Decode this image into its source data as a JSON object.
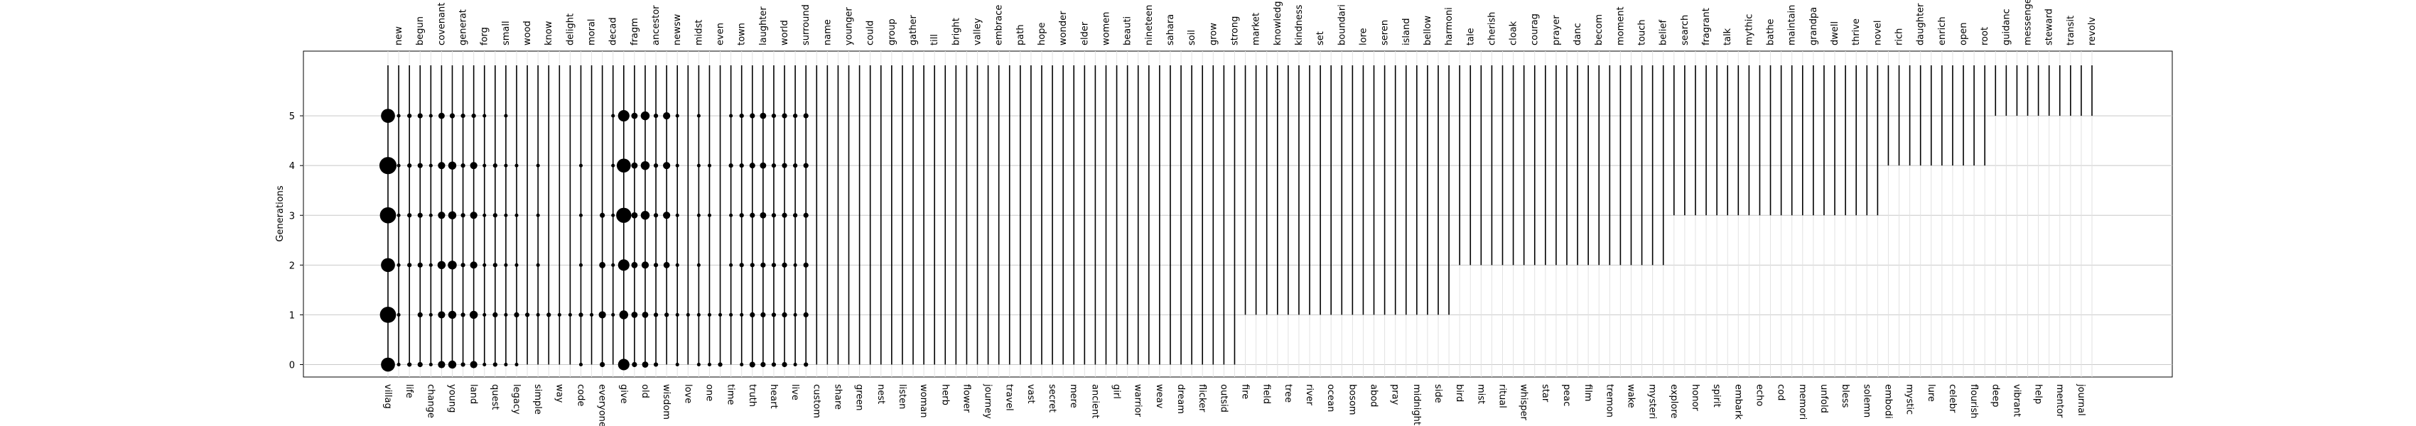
{
  "chart_data": {
    "type": "timeline",
    "y_label": "Generations",
    "ylim": [
      -0.25,
      6.3
    ],
    "yticks": [
      0,
      1,
      2,
      3,
      4,
      5
    ],
    "grid": true,
    "color": "#000000",
    "words": [
      "villag",
      "new",
      "life",
      "begun",
      "change",
      "covenant",
      "young",
      "generat",
      "land",
      "forg",
      "quest",
      "small",
      "legacy",
      "wood",
      "simple",
      "know",
      "way",
      "delight",
      "code",
      "moral",
      "everyone",
      "decad",
      "give",
      "fragm",
      "old",
      "ancestor",
      "wisdom",
      "newsw",
      "love",
      "midst",
      "one",
      "even",
      "time",
      "town",
      "truth",
      "laughter",
      "heart",
      "world",
      "live",
      "surround",
      "custom",
      "name",
      "share",
      "younger",
      "green",
      "could",
      "nest",
      "group",
      "listen",
      "gather",
      "woman",
      "till",
      "herb",
      "bright",
      "flower",
      "valley",
      "journey",
      "embrace",
      "travel",
      "path",
      "vast",
      "hope",
      "secret",
      "wonder",
      "mere",
      "elder",
      "ancient",
      "women",
      "girl",
      "beauti",
      "warrior",
      "nineteen",
      "weav",
      "sahara",
      "dream",
      "soil",
      "flicker",
      "grow",
      "outsid",
      "strong",
      "fire",
      "market",
      "field",
      "knowledg",
      "tree",
      "kindness",
      "river",
      "set",
      "ocean",
      "boundari",
      "bosom",
      "lore",
      "abod",
      "seren",
      "pray",
      "island",
      "midnight",
      "bellow",
      "side",
      "harmoni",
      "bird",
      "tale",
      "mist",
      "cherish",
      "ritual",
      "cloak",
      "whisper",
      "courag",
      "star",
      "prayer",
      "peac",
      "danc",
      "film",
      "becom",
      "tremon",
      "moment",
      "wake",
      "touch",
      "mysteri",
      "belief",
      "explore",
      "search",
      "honor",
      "fragrant",
      "spirit",
      "talk",
      "embark",
      "mythic",
      "echo",
      "bathe",
      "cod",
      "maintain",
      "memori",
      "grandpa",
      "unfold",
      "dwell",
      "bless",
      "thrive",
      "solemn",
      "novel",
      "embodi",
      "rich",
      "mystic",
      "daughter",
      "lure",
      "enrich",
      "celebr",
      "open",
      "flourish",
      "root",
      "deep",
      "guidanc",
      "vibrant",
      "messenger",
      "help",
      "steward",
      "mentor",
      "transit",
      "journal",
      "revolv"
    ],
    "first": [
      0,
      0,
      0,
      0,
      0,
      0,
      0,
      0,
      0,
      0,
      0,
      0,
      0,
      0,
      0,
      0,
      0,
      0,
      0,
      0,
      0,
      0,
      0,
      0,
      0,
      0,
      0,
      0,
      0,
      0,
      0,
      0,
      0,
      0,
      0,
      0,
      0,
      0,
      0,
      0,
      0,
      0,
      0,
      0,
      0,
      0,
      0,
      0,
      0,
      0,
      0,
      0,
      0,
      0,
      0,
      0,
      0,
      0,
      0,
      0,
      0,
      0,
      0,
      0,
      0,
      0,
      0,
      0,
      0,
      0,
      0,
      0,
      0,
      0,
      0,
      0,
      0,
      0,
      0,
      0,
      1,
      1,
      1,
      1,
      1,
      1,
      1,
      1,
      1,
      1,
      1,
      1,
      1,
      1,
      1,
      1,
      1,
      1,
      1,
      1,
      2,
      2,
      2,
      2,
      2,
      2,
      2,
      2,
      2,
      2,
      2,
      2,
      2,
      2,
      2,
      2,
      2,
      2,
      2,
      2,
      3,
      3,
      3,
      3,
      3,
      3,
      3,
      3,
      3,
      3,
      3,
      3,
      3,
      3,
      3,
      3,
      3,
      3,
      3,
      3,
      4,
      4,
      4,
      4,
      4,
      4,
      4,
      4,
      4,
      4,
      5,
      5,
      5,
      5,
      5,
      5,
      5,
      5,
      5,
      5
    ],
    "weights": [
      [
        30,
        40,
        30,
        40,
        45,
        30
      ],
      [
        2,
        2,
        2,
        2,
        2,
        2
      ],
      [
        3,
        null,
        3,
        3,
        3,
        3
      ],
      [
        4,
        4,
        4,
        4,
        4,
        4
      ],
      [
        2,
        2,
        2,
        2,
        2,
        2
      ],
      [
        8,
        8,
        10,
        8,
        8,
        6
      ],
      [
        10,
        10,
        12,
        10,
        10,
        4
      ],
      [
        3,
        3,
        3,
        3,
        3,
        3
      ],
      [
        8,
        10,
        8,
        8,
        8,
        3
      ],
      [
        2,
        2,
        2,
        2,
        2,
        2
      ],
      [
        3,
        4,
        3,
        3,
        3,
        null
      ],
      [
        2,
        2,
        2,
        2,
        2,
        2
      ],
      [
        2,
        4,
        2,
        2,
        2,
        null
      ],
      [
        null,
        3,
        null,
        null,
        null,
        null
      ],
      [
        null,
        2,
        2,
        2,
        2,
        null
      ],
      [
        null,
        3,
        null,
        null,
        null,
        null
      ],
      [
        null,
        2,
        null,
        null,
        null,
        null
      ],
      [
        null,
        2,
        null,
        null,
        null,
        null
      ],
      [
        2,
        3,
        2,
        2,
        2,
        null
      ],
      [
        null,
        2,
        null,
        null,
        null,
        null
      ],
      [
        4,
        8,
        6,
        4,
        null,
        null
      ],
      [
        null,
        2,
        2,
        2,
        2,
        2
      ],
      [
        20,
        12,
        20,
        35,
        30,
        20
      ],
      [
        4,
        6,
        6,
        6,
        6,
        6
      ],
      [
        6,
        6,
        8,
        12,
        12,
        12
      ],
      [
        3,
        3,
        3,
        3,
        3,
        3
      ],
      [
        null,
        3,
        6,
        8,
        8,
        8
      ],
      [
        2,
        2,
        2,
        2,
        2,
        2
      ],
      [
        null,
        2,
        null,
        null,
        null,
        null
      ],
      [
        2,
        2,
        2,
        2,
        2,
        2
      ],
      [
        2,
        2,
        null,
        2,
        2,
        null
      ],
      [
        3,
        2,
        null,
        null,
        null,
        null
      ],
      [
        null,
        2,
        2,
        2,
        3,
        2
      ],
      [
        2,
        2,
        3,
        3,
        3,
        3
      ],
      [
        5,
        4,
        3,
        4,
        5,
        4
      ],
      [
        4,
        4,
        4,
        6,
        6,
        6
      ],
      [
        3,
        3,
        3,
        3,
        3,
        3
      ],
      [
        4,
        4,
        4,
        4,
        4,
        4
      ],
      [
        2,
        2,
        2,
        3,
        3,
        3
      ],
      [
        3,
        4,
        4,
        4,
        4,
        4
      ],
      null,
      null,
      null,
      null,
      null,
      null,
      null,
      null,
      null,
      null,
      null,
      null,
      null,
      null,
      null,
      null,
      null,
      null,
      null,
      null,
      null,
      null,
      null,
      null,
      null,
      null,
      null,
      null,
      null,
      null,
      null,
      null,
      null,
      null,
      null,
      null,
      null,
      null,
      null,
      null,
      null,
      null,
      null,
      null,
      null,
      null,
      null,
      null,
      null,
      null,
      null,
      null,
      null,
      null,
      null,
      null,
      null,
      null,
      null,
      null,
      null,
      null,
      null,
      null,
      null,
      null,
      null,
      null,
      null,
      null,
      null,
      null,
      null,
      null,
      null,
      null,
      null,
      null,
      null,
      null,
      null,
      null,
      null,
      null,
      null,
      null,
      null,
      null,
      null,
      null,
      null,
      null,
      null,
      null,
      null,
      null,
      null,
      null,
      null,
      null,
      null,
      null,
      null,
      null,
      null,
      null,
      null,
      null,
      null,
      null,
      null,
      null,
      null,
      null,
      null,
      null,
      null,
      null,
      null,
      null
    ]
  }
}
